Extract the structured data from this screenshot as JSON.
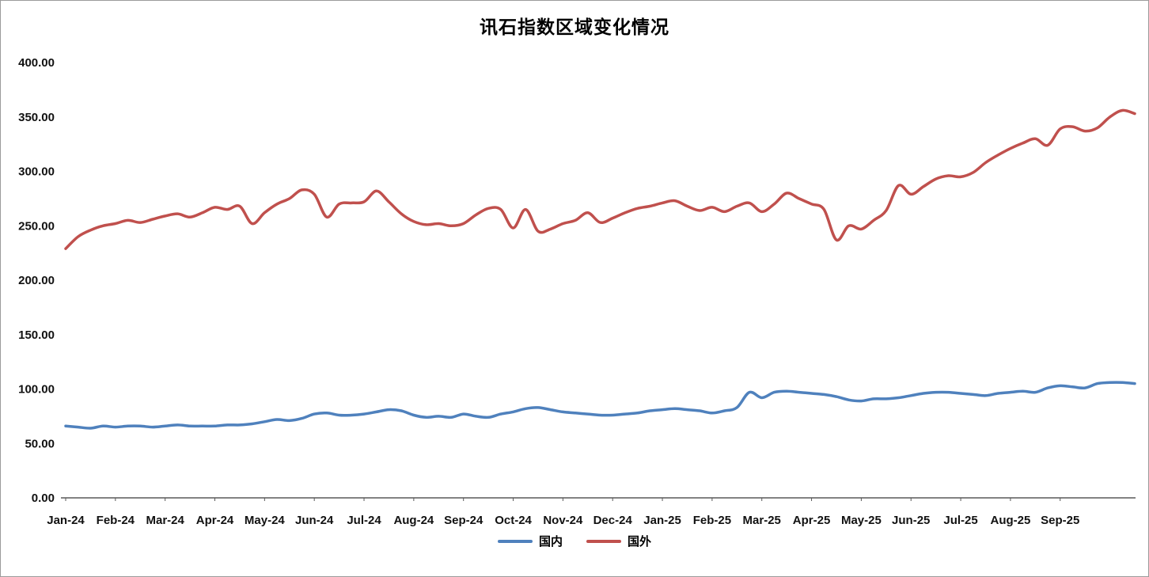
{
  "title": "讯石指数区域变化情况",
  "chart_data": {
    "type": "line",
    "title": "讯石指数区域变化情况",
    "xlabel": "",
    "ylabel": "",
    "ylim": [
      0,
      400
    ],
    "grid": false,
    "legend_position": "bottom",
    "points_per_month": 4,
    "x_tick_labels": [
      "Jan-24",
      "Feb-24",
      "Mar-24",
      "Apr-24",
      "May-24",
      "Jun-24",
      "Jul-24",
      "Aug-24",
      "Sep-24",
      "Oct-24",
      "Nov-24",
      "Dec-24",
      "Jan-25",
      "Feb-25",
      "Mar-25",
      "Apr-25",
      "May-25",
      "Jun-25",
      "Jul-25",
      "Aug-25",
      "Sep-25"
    ],
    "y_tick_values": [
      0,
      50,
      100,
      150,
      200,
      250,
      300,
      350,
      400
    ],
    "y_tick_labels": [
      "0.00",
      "50.00",
      "100.00",
      "150.00",
      "200.00",
      "250.00",
      "300.00",
      "350.00",
      "400.00"
    ],
    "series": [
      {
        "name": "国内",
        "color": "#4F81BD",
        "values": [
          66,
          65,
          64,
          66,
          65,
          66,
          66,
          65,
          66,
          67,
          66,
          66,
          66,
          67,
          67,
          68,
          70,
          72,
          71,
          73,
          77,
          78,
          76,
          76,
          77,
          79,
          81,
          80,
          76,
          74,
          75,
          74,
          77,
          75,
          74,
          77,
          79,
          82,
          83,
          81,
          79,
          78,
          77,
          76,
          76,
          77,
          78,
          80,
          81,
          82,
          81,
          80,
          78,
          80,
          83,
          97,
          92,
          97,
          98,
          97,
          96,
          95,
          93,
          90,
          89,
          91,
          91,
          92,
          94,
          96,
          97,
          97,
          96,
          95,
          94,
          96,
          97,
          98,
          97,
          101,
          103,
          102,
          101,
          105,
          106,
          106,
          105
        ]
      },
      {
        "name": "国外",
        "color": "#C0504D",
        "values": [
          229,
          240,
          246,
          250,
          252,
          255,
          253,
          256,
          259,
          261,
          258,
          262,
          267,
          265,
          268,
          252,
          262,
          270,
          275,
          283,
          279,
          258,
          270,
          271,
          272,
          282,
          272,
          261,
          254,
          251,
          252,
          250,
          252,
          260,
          266,
          265,
          248,
          265,
          245,
          247,
          252,
          255,
          262,
          253,
          257,
          262,
          266,
          268,
          271,
          273,
          268,
          264,
          267,
          263,
          268,
          271,
          263,
          270,
          280,
          275,
          270,
          265,
          237,
          250,
          247,
          255,
          264,
          287,
          279,
          286,
          293,
          296,
          295,
          299,
          308,
          315,
          321,
          326,
          330,
          324,
          339,
          341,
          337,
          340,
          350,
          356,
          353
        ]
      }
    ]
  }
}
